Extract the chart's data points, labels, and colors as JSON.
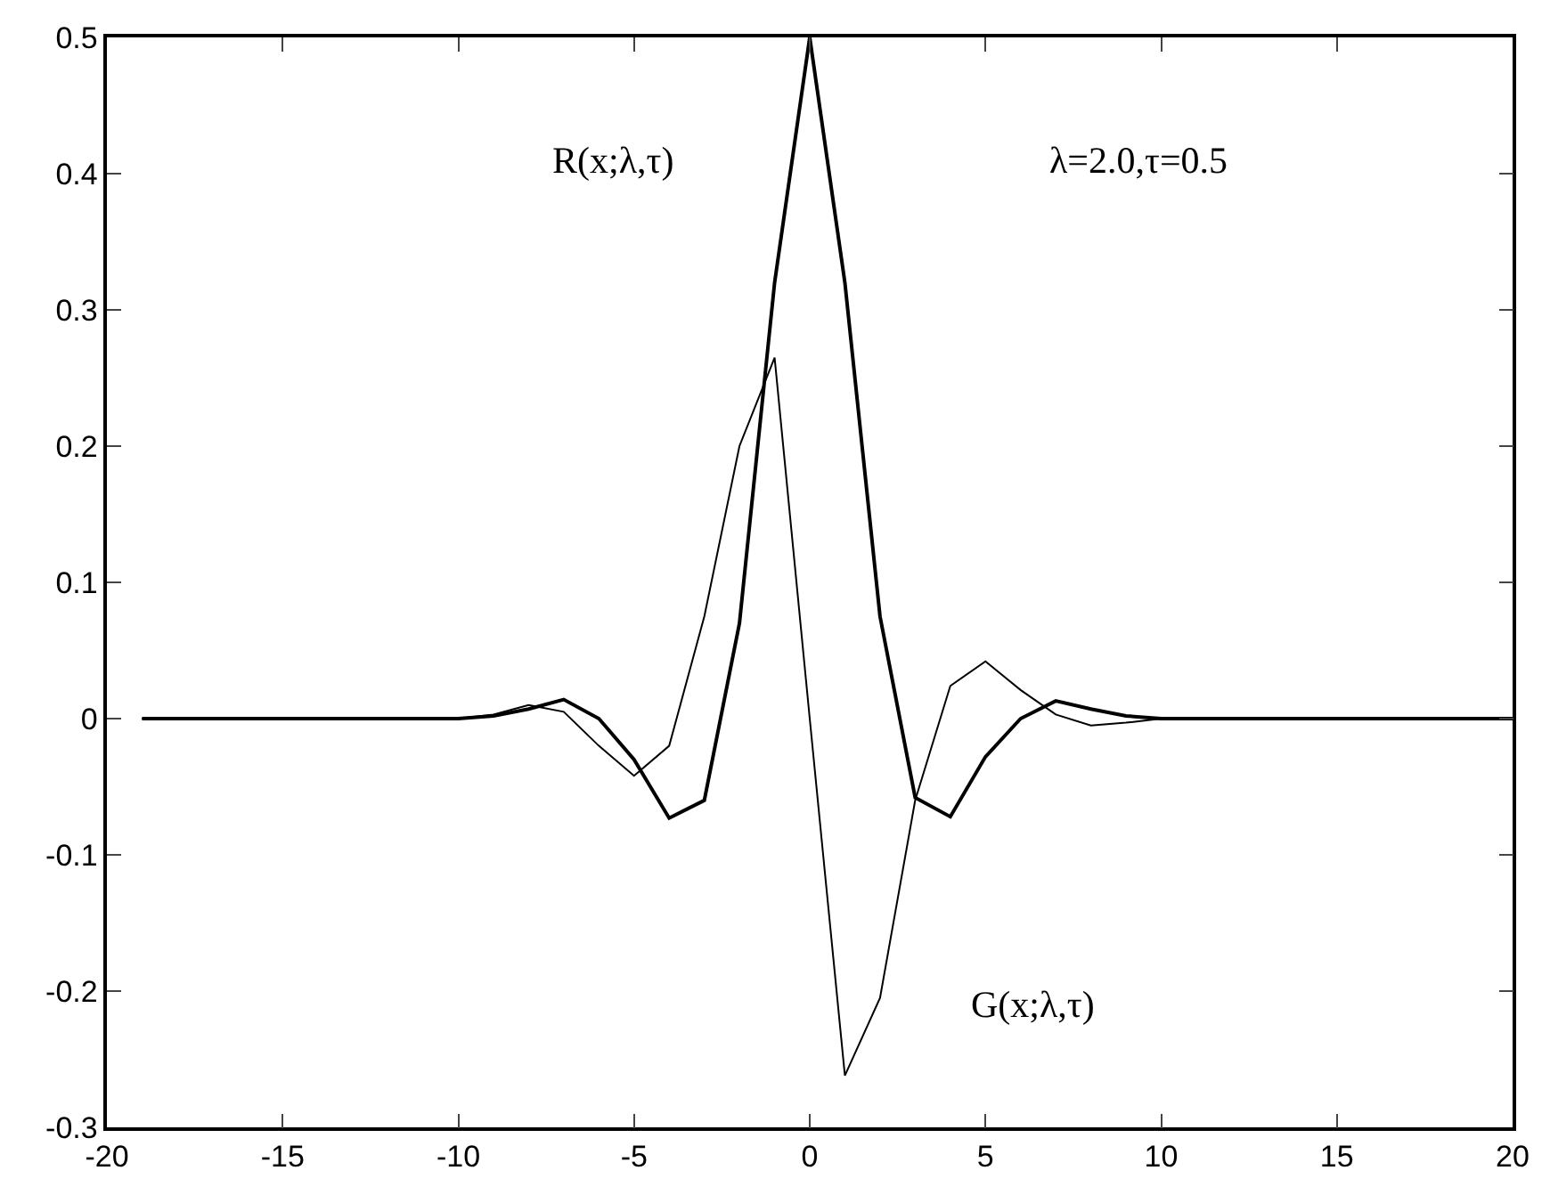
{
  "chart_data": {
    "type": "line",
    "x": [
      -19,
      -18,
      -17,
      -16,
      -15,
      -14,
      -13,
      -12,
      -11,
      -10,
      -9,
      -8,
      -7,
      -6,
      -5,
      -4,
      -3,
      -2,
      -1,
      0,
      1,
      2,
      3,
      4,
      5,
      6,
      7,
      8,
      9,
      10,
      11,
      12,
      13,
      14,
      15,
      16,
      17,
      18,
      19,
      20
    ],
    "series": [
      {
        "color": "#000000",
        "values": [
          0,
          0,
          0,
          0,
          0,
          0,
          0,
          0,
          0,
          0,
          0.002,
          0.007,
          0.014,
          0.0,
          -0.03,
          -0.073,
          -0.06,
          0.07,
          0.32,
          0.5,
          0.32,
          0.075,
          -0.058,
          -0.072,
          -0.028,
          0.0,
          0.013,
          0.007,
          0.002,
          0,
          0,
          0,
          0,
          0,
          0,
          0,
          0,
          0,
          0,
          0
        ]
      },
      {
        "color": "#000000",
        "values": [
          0,
          0,
          0,
          0,
          0,
          0,
          0,
          0,
          0,
          0,
          0.003,
          0.01,
          0.005,
          -0.02,
          -0.042,
          -0.02,
          0.075,
          0.2,
          0.265,
          0.0,
          -0.262,
          -0.205,
          -0.06,
          0.024,
          0.042,
          0.021,
          0.003,
          -0.005,
          -0.003,
          0,
          0,
          0,
          0,
          0,
          0,
          0,
          0,
          0,
          0,
          0
        ]
      }
    ],
    "annotations": [
      "R(x;λ,τ)",
      "G(x;λ,τ)",
      "λ=2.0,τ=0.5"
    ],
    "xlim": [
      -20,
      20
    ],
    "xticks": [
      -20,
      -15,
      -10,
      -5,
      0,
      5,
      10,
      15,
      20
    ],
    "ylim": [
      -0.3,
      0.5
    ],
    "yticks": [
      -0.3,
      -0.2,
      -0.1,
      0,
      0.1,
      0.2,
      0.3,
      0.4,
      0.5
    ],
    "marker": "none",
    "line_style": "solid"
  }
}
